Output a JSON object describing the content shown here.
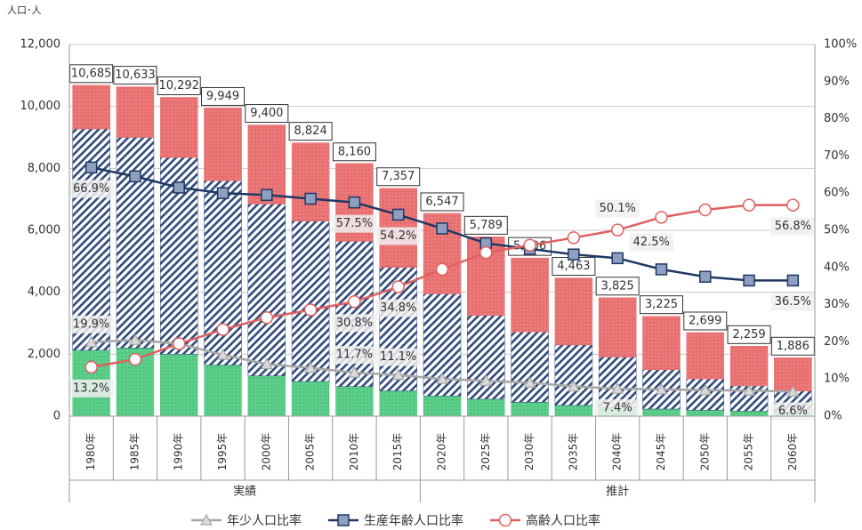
{
  "chart_data": {
    "type": "bar",
    "y_axis_label": "人口･人",
    "categories": [
      "1980年",
      "1985年",
      "1990年",
      "1995年",
      "2000年",
      "2005年",
      "2010年",
      "2015年",
      "2020年",
      "2025年",
      "2030年",
      "2035年",
      "2040年",
      "2045年",
      "2050年",
      "2055年",
      "2060年"
    ],
    "group_labels": [
      "実績",
      "推計"
    ],
    "ylim": [
      0,
      12000
    ],
    "yticks": [
      0,
      {
        "value": 2000,
        "label": "2,000"
      },
      {
        "value": 4000,
        "label": "4,000"
      },
      {
        "value": 6000,
        "label": "6,000"
      },
      {
        "value": 8000,
        "label": "8,000"
      },
      {
        "value": 10000,
        "label": "10,000"
      },
      {
        "value": 12000,
        "label": "12,000"
      }
    ],
    "y2lim": [
      0,
      100
    ],
    "y2ticks": [
      {
        "value": 0,
        "label": "0%"
      },
      {
        "value": 10,
        "label": "10%"
      },
      {
        "value": 20,
        "label": "20%"
      },
      {
        "value": 30,
        "label": "30%"
      },
      {
        "value": 40,
        "label": "40%"
      },
      {
        "value": 50,
        "label": "50%"
      },
      {
        "value": 60,
        "label": "60%"
      },
      {
        "value": 70,
        "label": "70%"
      },
      {
        "value": 80,
        "label": "80%"
      },
      {
        "value": 90,
        "label": "90%"
      },
      {
        "value": 100,
        "label": "100%"
      }
    ],
    "grid": true,
    "stacks": [
      {
        "color": "#5ccf8a",
        "values": [
          2126,
          2200,
          2000,
          1650,
          1300,
          1120,
          955,
          817,
          650,
          550,
          450,
          350,
          283,
          230,
          190,
          160,
          124
        ]
      },
      {
        "color": "#2f4a7a",
        "values": [
          7148,
          6800,
          6350,
          5950,
          5550,
          5180,
          4692,
          3988,
          3300,
          2700,
          2270,
          1950,
          1626,
          1270,
          1010,
          820,
          688
        ]
      },
      {
        "color": "#e86f6f",
        "values": [
          1411,
          1633,
          1942,
          2349,
          2550,
          2524,
          2513,
          2552,
          2597,
          2539,
          2386,
          2163,
          1916,
          1725,
          1499,
          1279,
          1074
        ]
      }
    ],
    "totals": {
      "values": [
        10685,
        10633,
        10292,
        9949,
        9400,
        8824,
        8160,
        7357,
        6547,
        5789,
        5106,
        4463,
        3825,
        3225,
        2699,
        2259,
        1886
      ],
      "value_labels": [
        "10,685",
        "10,633",
        "10,292",
        "9,949",
        "9,400",
        "8,824",
        "8,160",
        "7,357",
        "6,547",
        "5,789",
        "5,106",
        "4,463",
        "3,825",
        "3,225",
        "2,699",
        "2,259",
        "1,886"
      ]
    },
    "series": [
      {
        "name": "年少人口比率",
        "type": "line",
        "axis": "y2",
        "color": "#a6a6a6",
        "marker": "triangle",
        "values": [
          19.9,
          20.5,
          19.5,
          16.5,
          14,
          13,
          11.7,
          11.1,
          10,
          9.5,
          9,
          8,
          7.4,
          7.2,
          7,
          6.9,
          6.6
        ],
        "value_labels": [
          "19.9%",
          null,
          null,
          null,
          null,
          null,
          "11.7%",
          "11.1%",
          null,
          null,
          null,
          null,
          "7.4%",
          null,
          null,
          null,
          "6.6%"
        ]
      },
      {
        "name": "生産年齢人口比率",
        "type": "line",
        "axis": "y2",
        "color": "#1f3864",
        "marker": "square",
        "values": [
          66.9,
          64.5,
          61.5,
          60,
          59.5,
          58.5,
          57.5,
          54.2,
          50.5,
          46.5,
          45,
          43.5,
          42.5,
          39.5,
          37.5,
          36.5,
          36.5
        ],
        "value_labels": [
          "66.9%",
          null,
          null,
          null,
          null,
          null,
          "57.5%",
          "54.2%",
          null,
          null,
          null,
          null,
          "42.5%",
          null,
          null,
          null,
          "36.5%"
        ]
      },
      {
        "name": "高齢人口比率",
        "type": "line",
        "axis": "y2",
        "color": "#e06060",
        "marker": "circle",
        "values": [
          13.2,
          15.3,
          19.5,
          23.3,
          26.5,
          28.6,
          30.8,
          34.8,
          39.5,
          44,
          46,
          48,
          50.1,
          53.5,
          55.5,
          56.8,
          56.8
        ],
        "value_labels": [
          "13.2%",
          null,
          null,
          null,
          null,
          null,
          "30.8%",
          "34.8%",
          null,
          null,
          null,
          null,
          "50.1%",
          null,
          null,
          null,
          "56.8%"
        ]
      }
    ]
  }
}
